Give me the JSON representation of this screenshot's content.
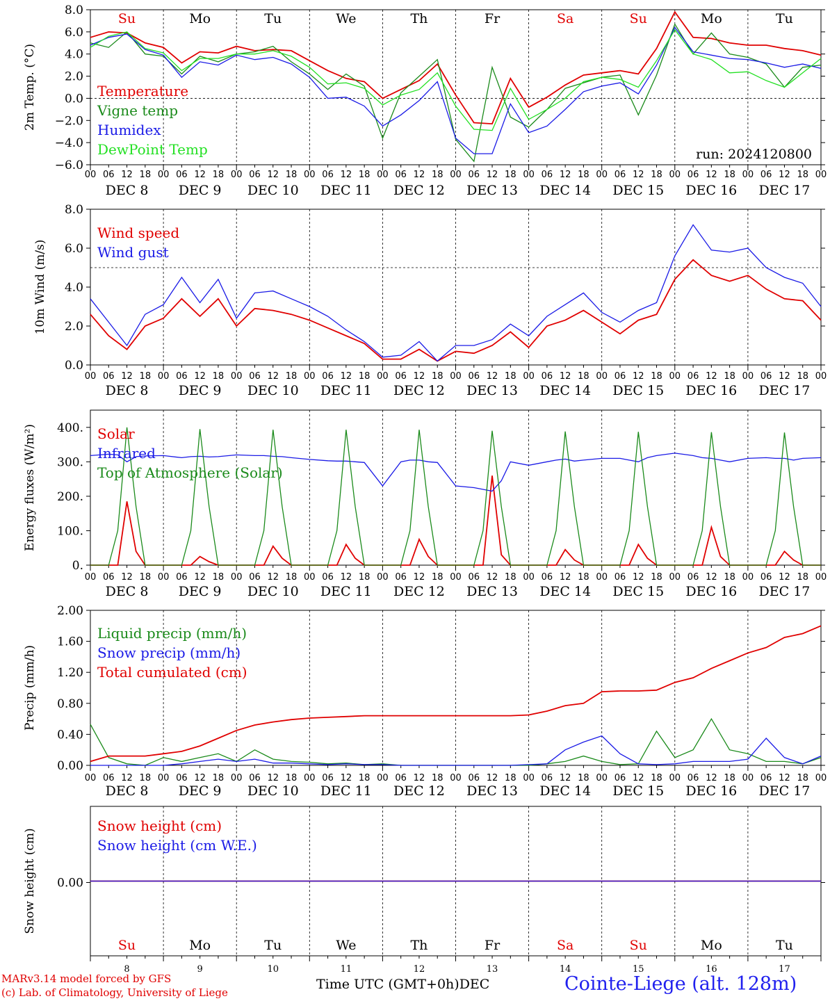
{
  "run_label": "run: 2024120800",
  "footer": {
    "model": "MARv3.14 model forced by GFS",
    "copyright": "(c) Lab. of Climatology, University of Liege",
    "time_axis": "Time UTC (GMT+0h)",
    "time_unit": "DEC",
    "station": "Cointe-Liege (alt. 128m)"
  },
  "weekdays": [
    "Su",
    "Mo",
    "Tu",
    "We",
    "Th",
    "Fr",
    "Sa",
    "Su",
    "Mo",
    "Tu"
  ],
  "weekday_colors": [
    "#e00000",
    "#000000",
    "#000000",
    "#000000",
    "#000000",
    "#000000",
    "#e00000",
    "#e00000",
    "#000000",
    "#000000"
  ],
  "date_labels": [
    "DEC  8",
    "DEC  9",
    "DEC 10",
    "DEC 11",
    "DEC 12",
    "DEC 13",
    "DEC 14",
    "DEC 15",
    "DEC 16",
    "DEC 17"
  ],
  "day_numbers": [
    "8",
    "9",
    "10",
    "11",
    "12",
    "13",
    "14",
    "15",
    "16",
    "17"
  ],
  "hour_ticks": [
    "00",
    "06",
    "12",
    "18"
  ],
  "colors": {
    "red": "#e00000",
    "green": "#1a8a1a",
    "blue": "#1a1ae6",
    "lightgreen": "#22e022"
  },
  "chart_data": [
    {
      "type": "line",
      "ylabel": "2m Temp. (°C)",
      "ylim": [
        -6,
        8
      ],
      "yticks": [
        "8.0",
        "6.0",
        "4.0",
        "2.0",
        "0.0",
        "−2.0",
        "−4.0",
        "−6.0"
      ],
      "reference_line": 0,
      "x_hours": [
        0,
        6,
        12,
        18,
        24,
        30,
        36,
        42,
        48,
        54,
        60,
        66,
        72,
        78,
        84,
        90,
        96,
        102,
        108,
        114,
        120,
        126,
        132,
        138,
        144,
        150,
        156,
        162,
        168,
        174,
        180,
        186,
        192,
        198,
        204,
        210,
        216,
        222,
        228,
        234,
        240
      ],
      "series": [
        {
          "name": "Temperature",
          "color": "red",
          "values": [
            5.5,
            6.0,
            5.9,
            5.0,
            4.6,
            3.2,
            4.2,
            4.1,
            4.7,
            4.3,
            4.4,
            4.3,
            3.4,
            2.5,
            1.8,
            1.5,
            0.0,
            0.8,
            1.6,
            3.1,
            0.3,
            -2.2,
            -2.3,
            1.8,
            -0.8,
            0.1,
            1.2,
            2.1,
            2.3,
            2.5,
            2.2,
            4.5,
            7.8,
            5.5,
            5.4,
            5.0,
            4.8,
            4.8,
            4.5,
            4.3,
            3.9
          ]
        },
        {
          "name": "Vigne temp",
          "color": "green",
          "values": [
            5.0,
            4.6,
            6.0,
            4.0,
            3.8,
            2.2,
            3.8,
            3.3,
            4.0,
            4.2,
            4.7,
            3.3,
            2.2,
            0.8,
            2.2,
            1.1,
            -3.6,
            0.5,
            2.0,
            3.5,
            -3.7,
            -5.7,
            2.8,
            -1.7,
            -2.6,
            -1.0,
            0.9,
            1.4,
            1.9,
            2.1,
            -1.5,
            2.1,
            6.7,
            4.0,
            5.9,
            4.0,
            3.7,
            3.1,
            1.0,
            2.8,
            3.0
          ]
        },
        {
          "name": "Humidex",
          "color": "blue",
          "values": [
            4.8,
            5.5,
            5.8,
            4.4,
            3.9,
            1.9,
            3.3,
            3.0,
            3.9,
            3.5,
            3.7,
            3.1,
            1.9,
            0.0,
            0.1,
            -0.7,
            -2.5,
            -1.5,
            -0.2,
            1.5,
            -3.6,
            -5.0,
            -5.0,
            -0.5,
            -3.1,
            -2.5,
            -1.0,
            0.6,
            1.1,
            1.4,
            0.4,
            3.0,
            6.4,
            4.2,
            3.9,
            3.6,
            3.5,
            3.2,
            2.8,
            3.1,
            2.7
          ]
        },
        {
          "name": "DewPoint Temp",
          "color": "lightgreen",
          "values": [
            4.6,
            5.6,
            6.0,
            4.5,
            4.1,
            2.5,
            3.6,
            3.6,
            4.0,
            4.0,
            4.3,
            3.8,
            2.8,
            1.3,
            1.4,
            0.9,
            -0.6,
            0.3,
            0.8,
            2.3,
            -0.7,
            -2.8,
            -2.9,
            0.9,
            -1.9,
            -1.0,
            0.0,
            1.5,
            1.9,
            1.7,
            1.0,
            3.4,
            6.2,
            4.0,
            3.5,
            2.3,
            2.4,
            1.6,
            1.0,
            2.3,
            3.6
          ]
        }
      ],
      "annotation": "run_label"
    },
    {
      "type": "line",
      "ylabel": "10m Wind (m/s)",
      "ylim": [
        0,
        8
      ],
      "yticks": [
        "8.0",
        "6.0",
        "4.0",
        "2.0",
        "0.0"
      ],
      "reference_line": 5,
      "x_hours": [
        0,
        6,
        12,
        18,
        24,
        30,
        36,
        42,
        48,
        54,
        60,
        66,
        72,
        78,
        84,
        90,
        96,
        102,
        108,
        114,
        120,
        126,
        132,
        138,
        144,
        150,
        156,
        162,
        168,
        174,
        180,
        186,
        192,
        198,
        204,
        210,
        216,
        222,
        228,
        234,
        240
      ],
      "series": [
        {
          "name": "Wind speed",
          "color": "red",
          "values": [
            2.6,
            1.5,
            0.8,
            2.0,
            2.4,
            3.4,
            2.5,
            3.4,
            2.0,
            2.9,
            2.8,
            2.6,
            2.3,
            1.9,
            1.5,
            1.1,
            0.3,
            0.3,
            0.8,
            0.2,
            0.7,
            0.6,
            1.0,
            1.7,
            0.9,
            2.0,
            2.3,
            2.8,
            2.2,
            1.6,
            2.3,
            2.6,
            4.4,
            5.4,
            4.6,
            4.3,
            4.6,
            3.9,
            3.4,
            3.3,
            2.3
          ]
        },
        {
          "name": "Wind gust",
          "color": "blue",
          "values": [
            3.4,
            2.2,
            1.0,
            2.6,
            3.1,
            4.5,
            3.2,
            4.4,
            2.4,
            3.7,
            3.8,
            3.4,
            3.0,
            2.5,
            1.8,
            1.2,
            0.4,
            0.5,
            1.2,
            0.2,
            1.0,
            1.0,
            1.3,
            2.1,
            1.5,
            2.5,
            3.1,
            3.7,
            2.7,
            2.2,
            2.8,
            3.2,
            5.6,
            7.2,
            5.9,
            5.8,
            6.0,
            5.0,
            4.5,
            4.2,
            3.0
          ]
        }
      ]
    },
    {
      "type": "line",
      "ylabel": "Energy fluxes (W/m²)",
      "ylim": [
        0,
        450
      ],
      "yticks": [
        "400.",
        "300.",
        "200.",
        "100.",
        "0."
      ],
      "x_hours": [
        0,
        6,
        9,
        12,
        15,
        18,
        24,
        30,
        33,
        36,
        39,
        42,
        48,
        54,
        57,
        60,
        63,
        66,
        72,
        78,
        81,
        84,
        87,
        90,
        96,
        102,
        105,
        108,
        111,
        114,
        120,
        126,
        129,
        132,
        135,
        138,
        144,
        150,
        153,
        156,
        159,
        162,
        168,
        174,
        177,
        180,
        183,
        186,
        192,
        198,
        201,
        204,
        207,
        210,
        216,
        222,
        225,
        228,
        231,
        234,
        240
      ],
      "series": [
        {
          "name": "Solar",
          "color": "red",
          "values": [
            0,
            0,
            0,
            185,
            40,
            0,
            0,
            0,
            0,
            25,
            10,
            0,
            0,
            0,
            0,
            55,
            20,
            0,
            0,
            0,
            0,
            60,
            20,
            0,
            0,
            0,
            0,
            75,
            25,
            0,
            0,
            0,
            0,
            260,
            30,
            0,
            0,
            0,
            0,
            45,
            15,
            0,
            0,
            0,
            0,
            60,
            20,
            0,
            0,
            0,
            0,
            110,
            25,
            0,
            0,
            0,
            0,
            40,
            15,
            0,
            0
          ]
        },
        {
          "name": "Infrared",
          "color": "blue",
          "values": [
            318,
            322,
            320,
            300,
            315,
            317,
            318,
            312,
            315,
            316,
            314,
            315,
            320,
            318,
            318,
            316,
            315,
            312,
            307,
            303,
            302,
            302,
            300,
            298,
            230,
            300,
            305,
            305,
            300,
            298,
            230,
            225,
            220,
            215,
            245,
            300,
            290,
            300,
            305,
            308,
            302,
            305,
            310,
            310,
            305,
            300,
            312,
            318,
            325,
            318,
            312,
            310,
            305,
            300,
            310,
            312,
            310,
            310,
            305,
            310,
            312
          ]
        },
        {
          "name": "Top of Atmosphere (Solar)",
          "color": "green",
          "values": [
            0,
            0,
            100,
            400,
            170,
            0,
            0,
            0,
            100,
            395,
            170,
            0,
            0,
            0,
            100,
            393,
            170,
            0,
            0,
            0,
            100,
            393,
            170,
            0,
            0,
            0,
            100,
            393,
            170,
            0,
            0,
            0,
            100,
            390,
            170,
            0,
            0,
            0,
            100,
            388,
            170,
            0,
            0,
            0,
            100,
            387,
            170,
            0,
            0,
            0,
            100,
            386,
            170,
            0,
            0,
            0,
            100,
            385,
            170,
            0,
            0
          ]
        }
      ]
    },
    {
      "type": "line",
      "ylabel": "Precip (mm/h)",
      "ylim": [
        0,
        2
      ],
      "yticks": [
        "2.00",
        "1.60",
        "1.20",
        "0.80",
        "0.40",
        "0.00"
      ],
      "x_hours": [
        0,
        6,
        12,
        18,
        24,
        30,
        36,
        42,
        48,
        54,
        60,
        66,
        72,
        78,
        84,
        90,
        96,
        102,
        108,
        114,
        120,
        126,
        132,
        138,
        144,
        150,
        156,
        162,
        168,
        174,
        180,
        186,
        192,
        198,
        204,
        210,
        216,
        222,
        228,
        234,
        240
      ],
      "series": [
        {
          "name": "Liquid precip (mm/h)",
          "color": "green",
          "values": [
            0.53,
            0.1,
            0.02,
            0.0,
            0.1,
            0.05,
            0.1,
            0.15,
            0.05,
            0.2,
            0.08,
            0.05,
            0.04,
            0.02,
            0.03,
            0.01,
            0.02,
            0.0,
            0.0,
            0.0,
            0.0,
            0.0,
            0.0,
            0.0,
            0.0,
            0.02,
            0.05,
            0.12,
            0.05,
            0.01,
            0.02,
            0.44,
            0.1,
            0.2,
            0.6,
            0.2,
            0.15,
            0.05,
            0.05,
            0.02,
            0.1
          ]
        },
        {
          "name": "Snow precip (mm/h)",
          "color": "blue",
          "values": [
            0.0,
            0.0,
            0.0,
            0.0,
            0.0,
            0.02,
            0.05,
            0.08,
            0.05,
            0.08,
            0.03,
            0.03,
            0.02,
            0.01,
            0.02,
            0.01,
            0.01,
            0.0,
            0.0,
            0.0,
            0.0,
            0.0,
            0.0,
            0.0,
            0.01,
            0.02,
            0.2,
            0.3,
            0.38,
            0.15,
            0.02,
            0.01,
            0.02,
            0.05,
            0.05,
            0.05,
            0.08,
            0.35,
            0.1,
            0.02,
            0.12
          ]
        },
        {
          "name": "Total cumulated (cm)",
          "color": "red",
          "values": [
            0.05,
            0.12,
            0.12,
            0.12,
            0.15,
            0.18,
            0.25,
            0.35,
            0.45,
            0.52,
            0.56,
            0.59,
            0.61,
            0.62,
            0.63,
            0.64,
            0.64,
            0.64,
            0.64,
            0.64,
            0.64,
            0.64,
            0.64,
            0.64,
            0.65,
            0.7,
            0.77,
            0.8,
            0.95,
            0.96,
            0.96,
            0.97,
            1.07,
            1.13,
            1.25,
            1.35,
            1.45,
            1.52,
            1.65,
            1.7,
            1.8
          ]
        }
      ]
    },
    {
      "type": "line",
      "ylabel": "Snow height (cm)",
      "ylim": [
        -1,
        1
      ],
      "yticks": [
        "0.00"
      ],
      "x_hours": [
        0,
        240
      ],
      "series": [
        {
          "name": "Snow height (cm)",
          "color": "red",
          "values": [
            0,
            0
          ]
        },
        {
          "name": "Snow height (cm W.E.)",
          "color": "blue",
          "values": [
            0,
            0
          ]
        }
      ]
    }
  ]
}
